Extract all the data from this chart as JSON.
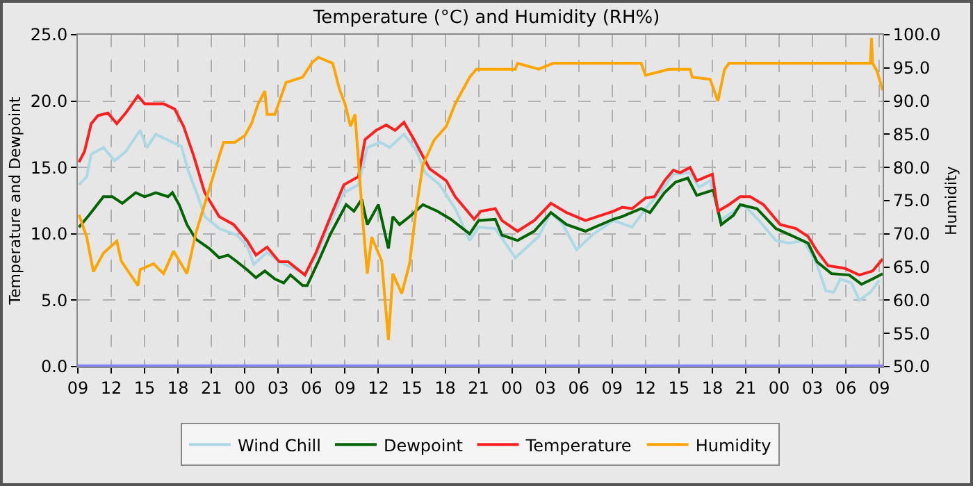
{
  "chart_data": {
    "type": "line",
    "title": "Temperature (°C) and Humidity (RH%)",
    "ylabel": "Temperature and Dewpoint",
    "y2label": "Humidity",
    "xlim": [
      "--01-01T09:00",
      "--01-04T09:18"
    ],
    "xticks": [
      {
        "value": "--01-01T09:00",
        "label": "09"
      },
      {
        "value": "--01-01T12:00",
        "label": "12"
      },
      {
        "value": "--01-01T15:00",
        "label": "15"
      },
      {
        "value": "--01-01T18:00",
        "label": "18"
      },
      {
        "value": "--01-01T21:00",
        "label": "21"
      },
      {
        "value": "--01-02T00:00",
        "label": "00"
      },
      {
        "value": "--01-02T03:00",
        "label": "03"
      },
      {
        "value": "--01-02T06:00",
        "label": "06"
      },
      {
        "value": "--01-02T09:00",
        "label": "09"
      },
      {
        "value": "--01-02T12:00",
        "label": "12"
      },
      {
        "value": "--01-02T15:00",
        "label": "15"
      },
      {
        "value": "--01-02T18:00",
        "label": "18"
      },
      {
        "value": "--01-02T21:00",
        "label": "21"
      },
      {
        "value": "--01-03T00:00",
        "label": "00"
      },
      {
        "value": "--01-03T03:00",
        "label": "03"
      },
      {
        "value": "--01-03T06:00",
        "label": "06"
      },
      {
        "value": "--01-03T09:00",
        "label": "09"
      },
      {
        "value": "--01-03T12:00",
        "label": "12"
      },
      {
        "value": "--01-03T15:00",
        "label": "15"
      },
      {
        "value": "--01-03T18:00",
        "label": "18"
      },
      {
        "value": "--01-03T21:00",
        "label": "21"
      },
      {
        "value": "--01-04T00:00",
        "label": "00"
      },
      {
        "value": "--01-04T03:00",
        "label": "03"
      },
      {
        "value": "--01-04T06:00",
        "label": "06"
      },
      {
        "value": "--01-04T09:00",
        "label": "09"
      }
    ],
    "ylim": [
      0,
      25
    ],
    "yticks": [
      {
        "value": 0,
        "label": "0.0"
      },
      {
        "value": 5,
        "label": "5.0"
      },
      {
        "value": 10,
        "label": "10.0"
      },
      {
        "value": 15,
        "label": "15.0"
      },
      {
        "value": 20,
        "label": "20.0"
      },
      {
        "value": 25,
        "label": "25.0"
      }
    ],
    "y2lim": [
      50,
      100
    ],
    "y2ticks": [
      {
        "value": 50,
        "label": "50.0"
      },
      {
        "value": 55,
        "label": "55.0"
      },
      {
        "value": 60,
        "label": "60.0"
      },
      {
        "value": 65,
        "label": "65.0"
      },
      {
        "value": 70,
        "label": "70.0"
      },
      {
        "value": 75,
        "label": "75.0"
      },
      {
        "value": 80,
        "label": "80.0"
      },
      {
        "value": 85,
        "label": "85.0"
      },
      {
        "value": 90,
        "label": "90.0"
      },
      {
        "value": 95,
        "label": "95.0"
      },
      {
        "value": 100,
        "label": "100.0"
      }
    ],
    "grid": true,
    "legend": "bottom",
    "marker": "none",
    "line_style": "solid",
    "ref_lines": [
      {
        "axis": "y",
        "value": 0,
        "color": "#8080ff"
      }
    ],
    "series": [
      {
        "name": "Wind Chill",
        "color": "#add8e6",
        "x": [
          "--01-01T09:06",
          "--01-01T09:48",
          "--01-01T10:12",
          "--01-01T11:18",
          "--01-01T12:18",
          "--01-01T13:18",
          "--01-01T14:36",
          "--01-01T15:12",
          "--01-01T16:00",
          "--01-01T17:30",
          "--01-01T18:18",
          "--01-01T18:54",
          "--01-01T19:48",
          "--01-01T20:24",
          "--01-01T21:42",
          "--01-01T23:18",
          "--01-02T00:12",
          "--01-02T00:48",
          "--01-02T02:00",
          "--01-02T03:06",
          "--01-02T05:24",
          "--01-02T06:24",
          "--01-02T07:42",
          "--01-02T08:54",
          "--01-02T10:12",
          "--01-02T11:00",
          "--01-02T12:12",
          "--01-02T13:00",
          "--01-02T14:18",
          "--01-02T15:24",
          "--01-02T16:12",
          "--01-02T17:30",
          "--01-02T18:54",
          "--01-02T20:12",
          "--01-02T21:00",
          "--01-02T22:30",
          "--01-03T00:18",
          "--01-03T02:24",
          "--01-03T03:30",
          "--01-03T04:30",
          "--01-03T05:48",
          "--01-03T07:12",
          "--01-03T09:06",
          "--01-03T10:48",
          "--01-03T12:00",
          "--01-03T13:18",
          "--01-03T14:30",
          "--01-03T16:00",
          "--01-03T16:48",
          "--01-03T17:48",
          "--01-03T18:42",
          "--01-03T19:54",
          "--01-03T20:48",
          "--01-03T22:12",
          "--01-03T23:42",
          "--01-04T00:54",
          "--01-04T02:12",
          "--01-04T03:24",
          "--01-04T04:12",
          "--01-04T04:54",
          "--01-04T05:30",
          "--01-04T06:30",
          "--01-04T07:12",
          "--01-04T08:12",
          "--01-04T09:00"
        ],
        "values": [
          13.7,
          14.3,
          16.0,
          16.5,
          15.5,
          16.2,
          17.8,
          16.5,
          17.5,
          16.9,
          16.6,
          14.8,
          12.8,
          11.3,
          10.4,
          9.9,
          9.1,
          7.7,
          8.6,
          7.9,
          7.0,
          8.3,
          10.9,
          13.1,
          13.7,
          16.5,
          16.9,
          16.5,
          17.5,
          16.3,
          14.6,
          13.7,
          11.9,
          9.5,
          10.5,
          10.4,
          8.2,
          9.8,
          11.6,
          10.8,
          8.8,
          9.9,
          11.0,
          10.5,
          11.9,
          13.1,
          14.5,
          14.6,
          13.5,
          14.0,
          11.0,
          11.7,
          12.2,
          11.0,
          9.5,
          9.3,
          9.5,
          7.7,
          5.7,
          5.6,
          6.6,
          6.3,
          5.0,
          5.6,
          6.5
        ]
      },
      {
        "name": "Dewpoint",
        "color": "#006400",
        "x": [
          "--01-01T09:06",
          "--01-01T10:00",
          "--01-01T11:18",
          "--01-01T12:06",
          "--01-01T13:00",
          "--01-01T14:12",
          "--01-01T15:00",
          "--01-01T16:00",
          "--01-01T17:06",
          "--01-01T17:30",
          "--01-01T18:06",
          "--01-01T18:48",
          "--01-01T19:36",
          "--01-01T20:48",
          "--01-01T21:42",
          "--01-01T22:30",
          "--01-01T23:18",
          "--01-02T00:12",
          "--01-02T01:00",
          "--01-02T01:48",
          "--01-02T02:42",
          "--01-02T03:30",
          "--01-02T04:06",
          "--01-02T05:12",
          "--01-02T05:36",
          "--01-02T06:36",
          "--01-02T07:42",
          "--01-02T09:06",
          "--01-02T09:48",
          "--01-02T10:30",
          "--01-02T11:00",
          "--01-02T12:00",
          "--01-02T12:54",
          "--01-02T13:18",
          "--01-02T13:54",
          "--01-02T14:48",
          "--01-02T16:00",
          "--01-02T17:18",
          "--01-02T18:30",
          "--01-02T20:12",
          "--01-02T21:00",
          "--01-02T22:30",
          "--01-02T23:06",
          "--01-03T00:30",
          "--01-03T02:00",
          "--01-03T03:30",
          "--01-03T04:54",
          "--01-03T06:36",
          "--01-03T09:06",
          "--01-03T09:54",
          "--01-03T11:36",
          "--01-03T12:24",
          "--01-03T13:42",
          "--01-03T14:42",
          "--01-03T15:48",
          "--01-03T16:36",
          "--01-03T18:06",
          "--01-03T18:48",
          "--01-03T19:54",
          "--01-03T20:30",
          "--01-03T22:00",
          "--01-03T23:42",
          "--01-04T01:18",
          "--01-04T02:36",
          "--01-04T03:24",
          "--01-04T04:42",
          "--01-04T06:18",
          "--01-04T07:24",
          "--01-04T08:24",
          "--01-04T09:18"
        ],
        "values": [
          10.5,
          11.4,
          12.8,
          12.8,
          12.3,
          13.1,
          12.8,
          13.1,
          12.8,
          13.1,
          12.2,
          10.7,
          9.6,
          8.9,
          8.2,
          8.4,
          7.9,
          7.3,
          6.7,
          7.2,
          6.6,
          6.3,
          6.9,
          6.1,
          6.1,
          7.9,
          10.0,
          12.2,
          11.7,
          12.6,
          10.7,
          12.2,
          8.9,
          11.3,
          10.7,
          11.3,
          12.2,
          11.7,
          11.1,
          10.0,
          11.0,
          11.1,
          9.9,
          9.5,
          10.2,
          11.6,
          10.7,
          10.2,
          11.1,
          11.3,
          11.9,
          11.6,
          13.1,
          13.9,
          14.2,
          12.9,
          13.3,
          10.7,
          11.4,
          12.2,
          11.9,
          10.4,
          9.8,
          9.3,
          7.9,
          7.0,
          6.9,
          6.2,
          6.6,
          7.0
        ]
      },
      {
        "name": "Temperature",
        "color": "#ff2020",
        "x": [
          "--01-01T09:06",
          "--01-01T09:36",
          "--01-01T10:12",
          "--01-01T10:48",
          "--01-01T11:42",
          "--01-01T12:30",
          "--01-01T13:18",
          "--01-01T14:24",
          "--01-01T15:00",
          "--01-01T16:42",
          "--01-01T17:42",
          "--01-01T18:30",
          "--01-01T19:24",
          "--01-01T20:24",
          "--01-01T21:42",
          "--01-01T23:00",
          "--01-02T00:12",
          "--01-02T01:00",
          "--01-02T02:00",
          "--01-02T03:06",
          "--01-02T03:54",
          "--01-02T05:24",
          "--01-02T06:24",
          "--01-02T07:42",
          "--01-02T08:54",
          "--01-02T10:12",
          "--01-02T10:48",
          "--01-02T11:48",
          "--01-02T12:42",
          "--01-02T13:30",
          "--01-02T14:18",
          "--01-02T15:12",
          "--01-02T16:36",
          "--01-02T18:06",
          "--01-02T18:54",
          "--01-02T20:36",
          "--01-02T21:12",
          "--01-02T22:30",
          "--01-02T23:06",
          "--01-03T00:30",
          "--01-03T02:00",
          "--01-03T03:30",
          "--01-03T04:54",
          "--01-03T06:36",
          "--01-03T09:06",
          "--01-03T09:54",
          "--01-03T10:48",
          "--01-03T12:00",
          "--01-03T12:48",
          "--01-03T13:42",
          "--01-03T14:30",
          "--01-03T15:06",
          "--01-03T16:00",
          "--01-03T16:36",
          "--01-03T18:00",
          "--01-03T18:30",
          "--01-03T19:30",
          "--01-03T20:30",
          "--01-03T21:24",
          "--01-03T22:36",
          "--01-04T00:06",
          "--01-04T01:30",
          "--01-04T02:36",
          "--01-04T03:24",
          "--01-04T04:24",
          "--01-04T05:54",
          "--01-04T07:12",
          "--01-04T08:24",
          "--01-04T09:18"
        ],
        "values": [
          15.4,
          16.2,
          18.3,
          18.9,
          19.1,
          18.3,
          19.1,
          20.4,
          19.8,
          19.8,
          19.4,
          18.1,
          15.9,
          13.1,
          11.3,
          10.7,
          9.5,
          8.4,
          9.0,
          7.9,
          7.9,
          6.9,
          8.6,
          11.3,
          13.7,
          14.3,
          17.1,
          17.8,
          18.2,
          17.8,
          18.4,
          17.1,
          14.9,
          14.0,
          12.8,
          11.1,
          11.7,
          11.9,
          11.0,
          10.2,
          11.0,
          12.3,
          11.6,
          11.0,
          11.7,
          12.0,
          11.9,
          12.7,
          12.8,
          14.0,
          14.8,
          14.6,
          15.0,
          14.0,
          14.5,
          11.7,
          12.2,
          12.8,
          12.8,
          12.2,
          10.7,
          10.4,
          9.8,
          8.7,
          7.6,
          7.4,
          6.9,
          7.2,
          8.1
        ]
      },
      {
        "name": "Humidity",
        "color": "#ffa500",
        "axis": "y2",
        "x": [
          "--01-01T09:06",
          "--01-01T09:48",
          "--01-01T10:24",
          "--01-01T11:18",
          "--01-01T12:30",
          "--01-01T12:54",
          "--01-01T14:24",
          "--01-01T14:36",
          "--01-01T15:48",
          "--01-01T16:42",
          "--01-01T17:36",
          "--01-01T18:48",
          "--01-01T19:36",
          "--01-01T20:36",
          "--01-01T21:42",
          "--01-01T22:06",
          "--01-01T23:06",
          "--01-02T00:00",
          "--01-02T00:36",
          "--01-02T01:12",
          "--01-02T01:48",
          "--01-02T02:00",
          "--01-02T02:42",
          "--01-02T03:42",
          "--01-02T05:12",
          "--01-02T06:00",
          "--01-02T06:36",
          "--01-02T07:54",
          "--01-02T08:30",
          "--01-02T09:00",
          "--01-02T09:30",
          "--01-02T09:54",
          "--01-02T10:36",
          "--01-02T11:00",
          "--01-02T11:24",
          "--01-02T12:18",
          "--01-02T12:54",
          "--01-02T13:18",
          "--01-02T14:06",
          "--01-02T14:48",
          "--01-02T15:24",
          "--01-02T16:00",
          "--01-02T17:00",
          "--01-02T18:06",
          "--01-02T18:54",
          "--01-02T20:12",
          "--01-02T20:48",
          "--01-03T00:18",
          "--01-03T00:30",
          "--01-03T02:24",
          "--01-03T03:42",
          "--01-03T09:06",
          "--01-03T11:36",
          "--01-03T12:00",
          "--01-03T14:06",
          "--01-03T16:00",
          "--01-03T16:12",
          "--01-03T17:48",
          "--01-03T18:30",
          "--01-03T19:06",
          "--01-03T19:30",
          "--01-04T08:12",
          "--01-04T08:18",
          "--01-04T08:24",
          "--01-04T08:48",
          "--01-04T09:18"
        ],
        "values": [
          72.9,
          69.5,
          64.3,
          67.1,
          68.9,
          65.9,
          62.2,
          64.6,
          65.5,
          64.0,
          67.4,
          64.0,
          70.1,
          75.6,
          81.7,
          83.8,
          83.8,
          84.8,
          86.6,
          89.6,
          91.5,
          88.0,
          88.0,
          92.8,
          93.6,
          95.7,
          96.6,
          95.7,
          91.8,
          89.6,
          86.2,
          88.0,
          72.0,
          64.0,
          69.5,
          65.9,
          54.0,
          64.0,
          61.0,
          65.5,
          73.8,
          80.4,
          84.1,
          86.2,
          89.6,
          93.6,
          94.8,
          94.8,
          95.7,
          94.8,
          95.7,
          95.7,
          95.7,
          93.9,
          94.8,
          94.8,
          93.6,
          93.3,
          90.0,
          94.8,
          95.7,
          95.7,
          99.5,
          95.7,
          94.5,
          91.6
        ]
      }
    ]
  }
}
